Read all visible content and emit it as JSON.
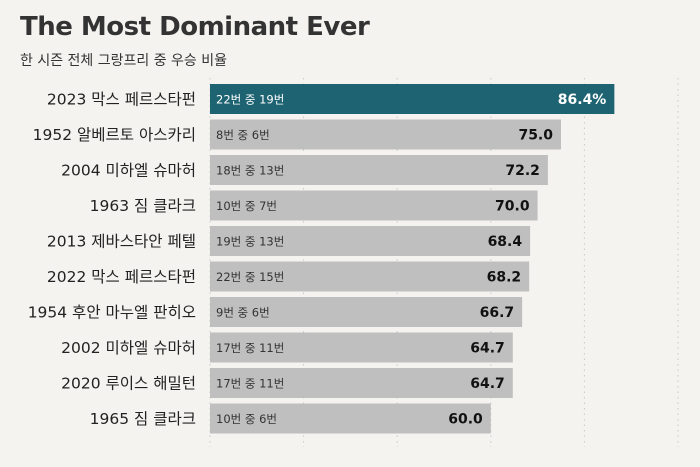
{
  "header": {
    "title": "The Most Dominant Ever",
    "subtitle": "한 시즌 전체 그랑프리 중 우승 비율"
  },
  "colors": {
    "highlight": "#1d6372",
    "bar": "#bfbfbf",
    "background": "#f4f3f0",
    "grid": "#c8c8c8"
  },
  "chart_data": {
    "type": "bar",
    "orientation": "horizontal",
    "title": "The Most Dominant Ever",
    "subtitle": "한 시즌 전체 그랑프리 중 우승 비율",
    "xlim": [
      0,
      100
    ],
    "grid": true,
    "categories": [
      "2023 막스 페르스타펀",
      "1952 알베르토 아스카리",
      "2004 미하엘 슈마허",
      "1963 짐 클라크",
      "2013 제바스타안 페텔",
      "2022 막스 페르스타펀",
      "1954 후안 마누엘 판히오",
      "2002 미하엘 슈마허",
      "2020 루이스 해밀턴",
      "1965 짐 클라크"
    ],
    "values": [
      86.4,
      75.0,
      72.2,
      70.0,
      68.4,
      68.2,
      66.7,
      64.7,
      64.7,
      60.0
    ],
    "value_labels": [
      "86.4%",
      "75.0",
      "72.2",
      "70.0",
      "68.4",
      "68.2",
      "66.7",
      "64.7",
      "64.7",
      "60.0"
    ],
    "bar_labels": [
      "22번 중 19번",
      "8번 중 6번",
      "18번 중 13번",
      "10번 중 7번",
      "19번 중 13번",
      "22번 중 15번",
      "9번 중 6번",
      "17번 중 11번",
      "17번 중 11번",
      "10번 중 6번"
    ],
    "highlight_index": 0
  }
}
